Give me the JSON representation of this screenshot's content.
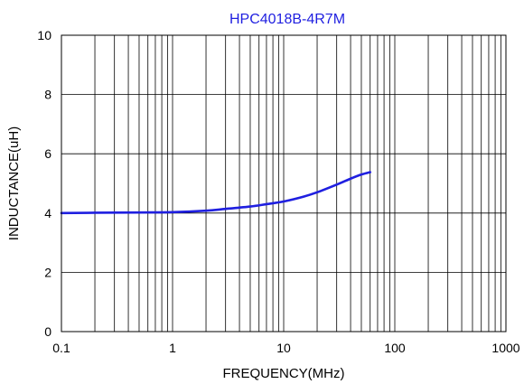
{
  "chart_data": {
    "type": "line",
    "title": "HPC4018B-4R7M",
    "xlabel": "FREQUENCY(MHz)",
    "ylabel": "INDUCTANCE(uH)",
    "x_scale": "log",
    "xlim": [
      0.1,
      1000
    ],
    "ylim": [
      0,
      10
    ],
    "x_ticks": [
      0.1,
      1,
      10,
      100,
      1000
    ],
    "x_tick_labels": [
      "0.1",
      "1",
      "10",
      "100",
      "1000"
    ],
    "y_ticks": [
      0,
      2,
      4,
      6,
      8,
      10
    ],
    "y_tick_labels": [
      "0",
      "2",
      "4",
      "6",
      "8",
      "10"
    ],
    "grid": true,
    "legend": "none",
    "series": [
      {
        "color": "#1f1fe0",
        "x": [
          0.1,
          0.2,
          0.5,
          1,
          2,
          3,
          5,
          7,
          10,
          15,
          20,
          30,
          40,
          50,
          60
        ],
        "y": [
          4.0,
          4.01,
          4.02,
          4.03,
          4.08,
          4.14,
          4.22,
          4.3,
          4.39,
          4.55,
          4.7,
          4.96,
          5.16,
          5.3,
          5.38
        ]
      }
    ],
    "title_color": "#1f1fe0"
  }
}
